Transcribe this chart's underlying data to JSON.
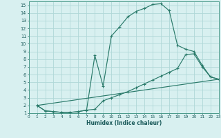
{
  "xlabel": "Humidex (Indice chaleur)",
  "ylabel": "",
  "bg_color": "#d8f0f0",
  "grid_color": "#b0d8d8",
  "line_color": "#2a7a6a",
  "xlim": [
    0,
    23
  ],
  "ylim": [
    1,
    15.5
  ],
  "xticks": [
    0,
    1,
    2,
    3,
    4,
    5,
    6,
    7,
    8,
    9,
    10,
    11,
    12,
    13,
    14,
    15,
    16,
    17,
    18,
    19,
    20,
    21,
    22,
    23
  ],
  "yticks": [
    1,
    2,
    3,
    4,
    5,
    6,
    7,
    8,
    9,
    10,
    11,
    12,
    13,
    14,
    15
  ],
  "line1_x": [
    1,
    2,
    3,
    4,
    5,
    6,
    7,
    8,
    9,
    10,
    11,
    12,
    13,
    14,
    15,
    16,
    17,
    18,
    19,
    20,
    21,
    22,
    23
  ],
  "line1_y": [
    2,
    1.3,
    1.2,
    1.1,
    1.1,
    1.2,
    1.4,
    8.5,
    4.5,
    11.0,
    12.2,
    13.5,
    14.2,
    14.6,
    15.1,
    15.2,
    14.3,
    9.8,
    9.3,
    9.0,
    7.2,
    5.7,
    5.4
  ],
  "line2_x": [
    1,
    2,
    3,
    4,
    5,
    6,
    7,
    8,
    9,
    10,
    11,
    12,
    13,
    14,
    15,
    16,
    17,
    18,
    19,
    20,
    21,
    22,
    23
  ],
  "line2_y": [
    2,
    1.3,
    1.2,
    1.1,
    1.1,
    1.2,
    1.4,
    1.5,
    2.6,
    3.0,
    3.4,
    3.8,
    4.3,
    4.8,
    5.3,
    5.8,
    6.3,
    6.8,
    8.6,
    8.7,
    7.0,
    5.7,
    5.4
  ],
  "line3_x": [
    1,
    23
  ],
  "line3_y": [
    2,
    5.4
  ]
}
